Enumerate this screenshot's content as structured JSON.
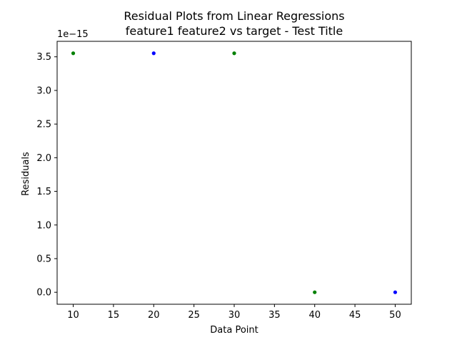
{
  "chart_data": {
    "type": "scatter",
    "title_line1": "Residual Plots from Linear Regressions",
    "title_line2": "feature1 feature2  vs target - Test Title",
    "xlabel": "Data Point",
    "ylabel": "Residuals",
    "y_offset_text": "1e−15",
    "xlim": [
      8,
      52
    ],
    "ylim": [
      -0.178,
      3.73
    ],
    "y_multiplier": 1e-15,
    "xticks": [
      10,
      15,
      20,
      25,
      30,
      35,
      40,
      45,
      50
    ],
    "xtick_labels": [
      "10",
      "15",
      "20",
      "25",
      "30",
      "35",
      "40",
      "45",
      "50"
    ],
    "yticks": [
      0.0,
      0.5,
      1.0,
      1.5,
      2.0,
      2.5,
      3.0,
      3.5
    ],
    "ytick_labels": [
      "0.0",
      "0.5",
      "1.0",
      "1.5",
      "2.0",
      "2.5",
      "3.0",
      "3.5"
    ],
    "grid": false,
    "legend": "none",
    "series": [
      {
        "color": "#008000",
        "x": [
          10,
          30,
          40
        ],
        "y": [
          3.552713678800501,
          3.552713678800501,
          0.0
        ]
      },
      {
        "color": "#0000ff",
        "x": [
          20,
          50
        ],
        "y": [
          3.552713678800501,
          0.0
        ]
      }
    ]
  }
}
